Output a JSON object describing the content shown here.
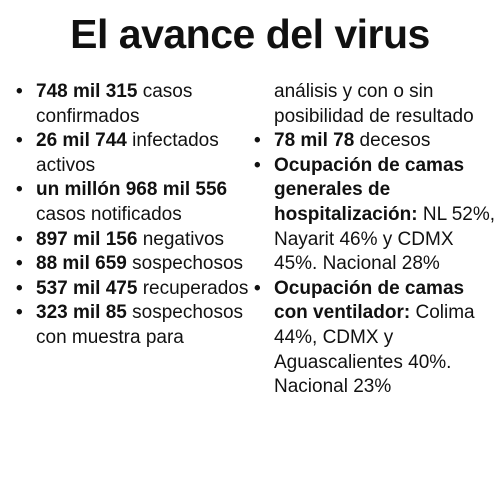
{
  "title": "El avance del virus",
  "bullet_glyph": "•",
  "left_items": [
    {
      "bold": "748 mil 315",
      "text": " casos confirmados"
    },
    {
      "bold": "26 mil 744",
      "text": " infectados activos"
    },
    {
      "bold": "un millón 968 mil 556",
      "text": " casos notificados"
    },
    {
      "bold": "897 mil 156",
      "text": " negativos"
    },
    {
      "bold": "88 mil 659",
      "text": " sospechosos"
    },
    {
      "bold": "537 mil 475",
      "text": " recuperados"
    },
    {
      "bold": "323 mil 85",
      "text": " sospechosos con muestra para"
    }
  ],
  "right_continuation": "análisis y con o sin posibilidad de resultado",
  "right_items": [
    {
      "bold": "78 mil 78",
      "text": " decesos"
    },
    {
      "bold": "Ocupación de camas generales de hospitalización:",
      "text": " NL 52%, Nayarit 46% y CDMX 45%. Nacional 28%"
    },
    {
      "bold": "Ocupación de camas con ventilador:",
      "text": " Colima 44%, CDMX y Aguascalientes 40%. Nacional 23%"
    }
  ]
}
